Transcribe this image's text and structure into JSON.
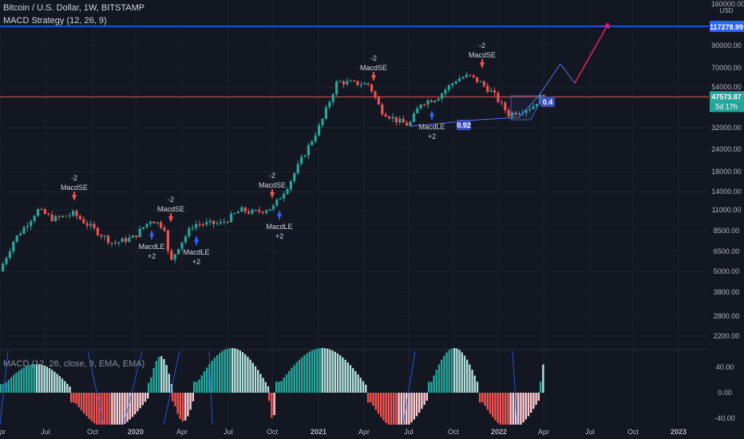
{
  "header": {
    "symbol_line": "Bitcoin / U.S. Dollar, 1W, BITSTAMP",
    "strategy_line": "MACD Strategy (12, 26, 9)",
    "macd_overlay": "MACD (12, 26, close, 9, EMA, EMA)"
  },
  "price_axis": {
    "currency": "USD",
    "top_label": "160000.00",
    "ticks": [
      "90000.00",
      "70000.00",
      "54000.00",
      "32000.00",
      "24000.00",
      "18000.00",
      "14000.00",
      "11000.00",
      "8500.00",
      "6500.00",
      "5000.00",
      "3800.00",
      "2800.00",
      "2200.00"
    ],
    "target_badge": "117278.99",
    "current_price": "47573.87",
    "countdown": "5d 17h"
  },
  "macd_axis": {
    "ticks": [
      "40.00",
      "0.00",
      "-40.00"
    ]
  },
  "time_axis": {
    "labels": [
      "Apr",
      "Jul",
      "Oct",
      "2020",
      "Apr",
      "Jul",
      "Oct",
      "2021",
      "Apr",
      "Jul",
      "Oct",
      "2022",
      "Apr",
      "Jul",
      "Oct",
      "2023"
    ]
  },
  "signals": [
    {
      "kind": "short",
      "top": "-2",
      "label": "MacdSE"
    },
    {
      "kind": "long",
      "label": "MacdLE",
      "bottom": "+2"
    },
    {
      "kind": "short",
      "top": "-2",
      "label": "MacdSE"
    },
    {
      "kind": "long",
      "label": "MacdLE",
      "bottom": "+2"
    },
    {
      "kind": "short",
      "top": "-2",
      "label": "MacdSE"
    },
    {
      "kind": "long",
      "label": "MacdLE",
      "bottom": "+2"
    },
    {
      "kind": "short",
      "top": "-2",
      "label": "MacdSE"
    },
    {
      "kind": "long",
      "label": "MacdLE",
      "bottom": "+2"
    },
    {
      "kind": "short",
      "top": "-2",
      "label": "MacdSE"
    }
  ],
  "badges": {
    "fib_a": "0.92",
    "fib_b": "0.4"
  },
  "colors": {
    "bg": "#131722",
    "up": "#26a69a",
    "down": "#ef5350",
    "light_up": "#b2dfdb",
    "light_down": "#ffcdd2",
    "target_line": "#2962ff",
    "price_line": "#ef5350",
    "projection": "#e91e63",
    "path": "#5b6ee1"
  }
}
